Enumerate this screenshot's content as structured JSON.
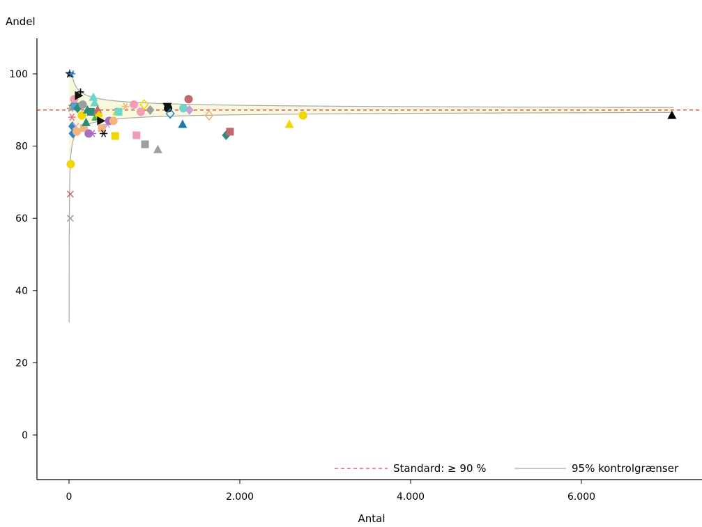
{
  "chart_data": {
    "type": "scatter",
    "title": "",
    "xlabel": "Antal",
    "ylabel": "Andel",
    "xlim": [
      -400,
      7400
    ],
    "ylim": [
      -12,
      111
    ],
    "x_ticks": [
      0,
      2000,
      4000,
      6000
    ],
    "x_tick_labels": [
      "0",
      "2.000",
      "4.000",
      "6.000"
    ],
    "y_ticks": [
      0,
      20,
      40,
      60,
      80,
      100
    ],
    "y_tick_labels": [
      "0",
      "20",
      "40",
      "60",
      "80",
      "100"
    ],
    "grid": false,
    "legend_position": "bottom-right",
    "standard": {
      "label": "Standard: ≥ 90 %",
      "value": 90,
      "color": "#e8413c"
    },
    "control_limits": {
      "label": "95% kontrolgrænser",
      "p": 0.9,
      "color": "#a9a9a9",
      "fill": "#f7f8dc"
    },
    "series": [
      {
        "x": 8,
        "y": 100,
        "marker": "star",
        "color": "#000000"
      },
      {
        "x": 30,
        "y": 100,
        "marker": "asterisk",
        "color": "#2e86c1"
      },
      {
        "x": 20,
        "y": 75,
        "marker": "circle",
        "color": "#f2d600"
      },
      {
        "x": 15,
        "y": 66.7,
        "marker": "x",
        "color": "#c0686e"
      },
      {
        "x": 15,
        "y": 60,
        "marker": "x",
        "color": "#9e9e9e"
      },
      {
        "x": 20,
        "y": 90.5,
        "marker": "asterisk",
        "color": "#9e9e9e"
      },
      {
        "x": 35,
        "y": 88,
        "marker": "asterisk",
        "color": "#e56f9e"
      },
      {
        "x": 40,
        "y": 85.5,
        "marker": "diamond",
        "color": "#2e86c1"
      },
      {
        "x": 45,
        "y": 83.5,
        "marker": "diamond",
        "color": "#2e86c1"
      },
      {
        "x": 55,
        "y": 92,
        "marker": "triangle",
        "color": "#6f7f3c"
      },
      {
        "x": 60,
        "y": 93,
        "marker": "circle",
        "color": "#f29db7"
      },
      {
        "x": 70,
        "y": 91,
        "marker": "square",
        "color": "#5b9ec9"
      },
      {
        "x": 80,
        "y": 85.5,
        "marker": "x",
        "color": "#e5a0c8"
      },
      {
        "x": 90,
        "y": 84,
        "marker": "circle",
        "color": "#f5b47f"
      },
      {
        "x": 100,
        "y": 90.5,
        "marker": "diamond",
        "color": "#2a8c7a"
      },
      {
        "x": 110,
        "y": 94,
        "marker": "triangle-right",
        "color": "#111111"
      },
      {
        "x": 135,
        "y": 95,
        "marker": "plus",
        "color": "#111111"
      },
      {
        "x": 150,
        "y": 88.5,
        "marker": "circle",
        "color": "#f2d600"
      },
      {
        "x": 160,
        "y": 91.5,
        "marker": "circle",
        "color": "#9e9e9e"
      },
      {
        "x": 175,
        "y": 85,
        "marker": "square",
        "color": "#f5b47f"
      },
      {
        "x": 200,
        "y": 86.5,
        "marker": "triangle",
        "color": "#2a8c7a"
      },
      {
        "x": 215,
        "y": 90,
        "marker": "triangle",
        "color": "#2a8c7a"
      },
      {
        "x": 230,
        "y": 83.5,
        "marker": "circle",
        "color": "#a56fc1"
      },
      {
        "x": 255,
        "y": 89.5,
        "marker": "square",
        "color": "#2a8c7a"
      },
      {
        "x": 275,
        "y": 83.5,
        "marker": "asterisk",
        "color": "#a56fc1"
      },
      {
        "x": 285,
        "y": 93.5,
        "marker": "triangle",
        "color": "#6dd6c8"
      },
      {
        "x": 300,
        "y": 92,
        "marker": "triangle",
        "color": "#6dd6c8"
      },
      {
        "x": 315,
        "y": 88,
        "marker": "triangle",
        "color": "#4caf50"
      },
      {
        "x": 335,
        "y": 90,
        "marker": "triangle",
        "color": "#c0686e"
      },
      {
        "x": 350,
        "y": 88.5,
        "marker": "diamond",
        "color": "#f2d600"
      },
      {
        "x": 370,
        "y": 87,
        "marker": "triangle-right",
        "color": "#111111"
      },
      {
        "x": 385,
        "y": 85,
        "marker": "square",
        "color": "#f5b47f"
      },
      {
        "x": 405,
        "y": 83.5,
        "marker": "asterisk",
        "color": "#111111"
      },
      {
        "x": 450,
        "y": 86,
        "marker": "asterisk",
        "color": "#c8a0d8"
      },
      {
        "x": 470,
        "y": 87,
        "marker": "circle",
        "color": "#a56fc1"
      },
      {
        "x": 520,
        "y": 87,
        "marker": "circle",
        "color": "#f5b47f"
      },
      {
        "x": 540,
        "y": 82.8,
        "marker": "square",
        "color": "#f2d600"
      },
      {
        "x": 560,
        "y": 89.5,
        "marker": "triangle",
        "color": "#f2d600"
      },
      {
        "x": 580,
        "y": 89.5,
        "marker": "square",
        "color": "#6dd6c8"
      },
      {
        "x": 660,
        "y": 91,
        "marker": "asterisk",
        "color": "#f5b47f"
      },
      {
        "x": 760,
        "y": 91.5,
        "marker": "circle",
        "color": "#f29db7"
      },
      {
        "x": 790,
        "y": 83,
        "marker": "square",
        "color": "#f29db7"
      },
      {
        "x": 840,
        "y": 89.5,
        "marker": "circle",
        "color": "#f29db7"
      },
      {
        "x": 880,
        "y": 91.5,
        "marker": "diamond-open",
        "color": "#f2d600"
      },
      {
        "x": 890,
        "y": 80.5,
        "marker": "square",
        "color": "#9e9e9e"
      },
      {
        "x": 950,
        "y": 90,
        "marker": "diamond",
        "color": "#9e9e9e"
      },
      {
        "x": 1040,
        "y": 79,
        "marker": "triangle",
        "color": "#9e9e9e"
      },
      {
        "x": 1150,
        "y": 91,
        "marker": "triangle-down",
        "color": "#111111"
      },
      {
        "x": 1160,
        "y": 90.5,
        "marker": "circle",
        "color": "#111111"
      },
      {
        "x": 1185,
        "y": 89,
        "marker": "diamond-open",
        "color": "#2e86c1"
      },
      {
        "x": 1330,
        "y": 86,
        "marker": "triangle",
        "color": "#1a7bb0"
      },
      {
        "x": 1340,
        "y": 90.5,
        "marker": "circle",
        "color": "#6dd6c8"
      },
      {
        "x": 1400,
        "y": 93,
        "marker": "circle",
        "color": "#c0686e"
      },
      {
        "x": 1410,
        "y": 90,
        "marker": "diamond",
        "color": "#c8a0d8"
      },
      {
        "x": 1640,
        "y": 88.5,
        "marker": "diamond-open",
        "color": "#f5b47f"
      },
      {
        "x": 1840,
        "y": 83,
        "marker": "diamond",
        "color": "#2a8c7a"
      },
      {
        "x": 1885,
        "y": 84,
        "marker": "square",
        "color": "#c0686e"
      },
      {
        "x": 2580,
        "y": 86,
        "marker": "triangle",
        "color": "#f2d600"
      },
      {
        "x": 2740,
        "y": 88.5,
        "marker": "circle",
        "color": "#f2d600"
      },
      {
        "x": 7060,
        "y": 88.5,
        "marker": "triangle",
        "color": "#000000"
      }
    ]
  }
}
